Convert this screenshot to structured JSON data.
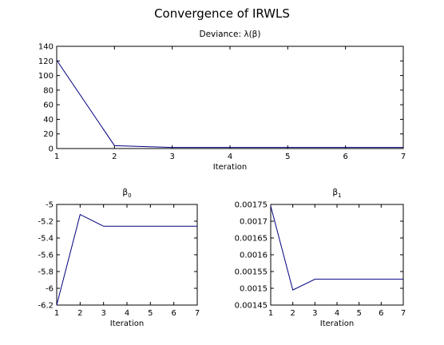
{
  "figure_title": "Convergence of IRWLS",
  "line_color": "#00007f",
  "chart_data": [
    {
      "type": "line",
      "title": "Deviance: λ(β)",
      "xlabel": "Iteration",
      "ylabel": "",
      "xlim": [
        1,
        7
      ],
      "ylim": [
        0,
        140
      ],
      "xticks": [
        1,
        2,
        3,
        4,
        5,
        6,
        7
      ],
      "yticks": [
        0,
        20,
        40,
        60,
        80,
        100,
        120,
        140
      ],
      "grid": false,
      "series": [
        {
          "x": [
            1,
            2,
            3,
            4,
            5,
            6,
            7
          ],
          "y": [
            121,
            4,
            1.5,
            1.5,
            1.5,
            1.5,
            1.5
          ]
        }
      ]
    },
    {
      "type": "line",
      "title": "β",
      "title_subscript": "0",
      "xlabel": "Iteration",
      "ylabel": "",
      "xlim": [
        1,
        7
      ],
      "ylim": [
        -6.2,
        -5
      ],
      "xticks": [
        1,
        2,
        3,
        4,
        5,
        6,
        7
      ],
      "yticks": [
        -6.2,
        -6,
        -5.8,
        -5.6,
        -5.4,
        -5.2,
        -5
      ],
      "grid": false,
      "series": [
        {
          "x": [
            1,
            2,
            3,
            4,
            5,
            6,
            7
          ],
          "y": [
            -6.2,
            -5.12,
            -5.26,
            -5.26,
            -5.26,
            -5.26,
            -5.26
          ]
        }
      ]
    },
    {
      "type": "line",
      "title": "β",
      "title_subscript": "1",
      "xlabel": "Iteration",
      "ylabel": "",
      "xlim": [
        1,
        7
      ],
      "ylim": [
        0.00145,
        0.00175
      ],
      "xticks": [
        1,
        2,
        3,
        4,
        5,
        6,
        7
      ],
      "yticks": [
        0.00145,
        0.0015,
        0.00155,
        0.0016,
        0.00165,
        0.0017,
        0.00175
      ],
      "grid": false,
      "series": [
        {
          "x": [
            1,
            2,
            3,
            4,
            5,
            6,
            7
          ],
          "y": [
            0.001745,
            0.001495,
            0.001527,
            0.001527,
            0.001527,
            0.001527,
            0.001527
          ]
        }
      ]
    }
  ]
}
